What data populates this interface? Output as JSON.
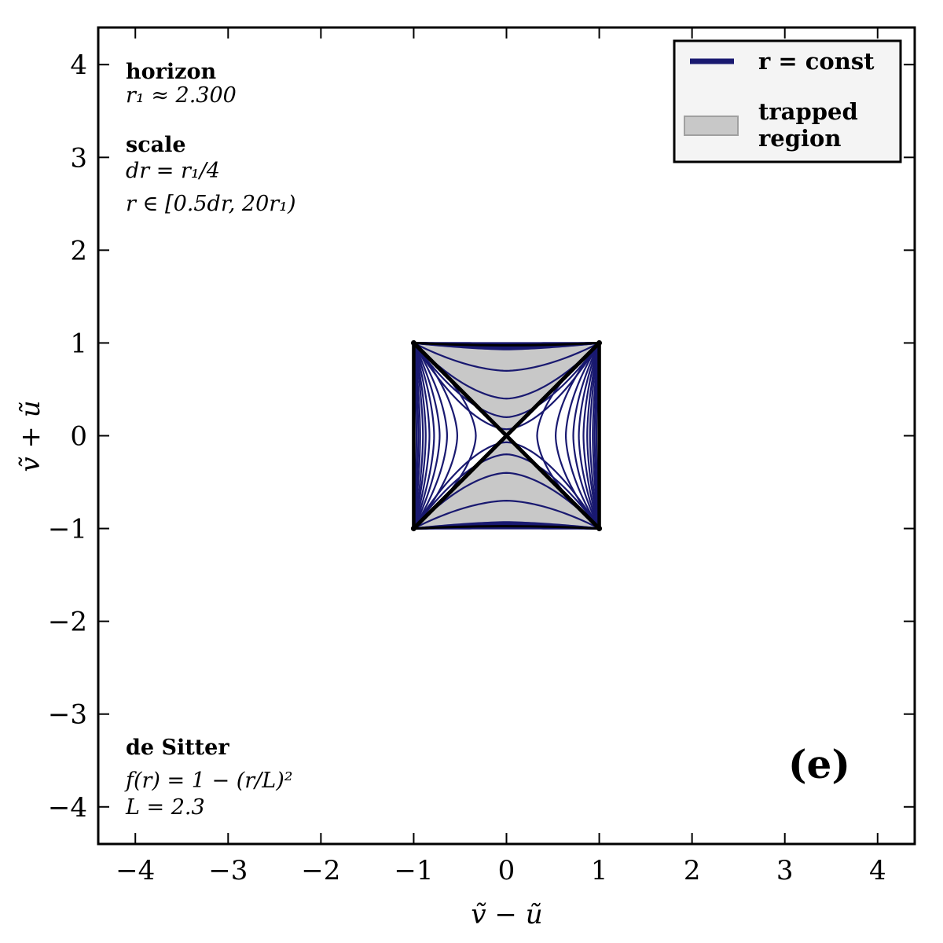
{
  "chart_data": {
    "type": "line",
    "title": "",
    "xlabel": "ṽ − ũ",
    "ylabel": "ṽ + ũ",
    "xlim": [
      -4.4,
      4.4
    ],
    "ylim": [
      -4.4,
      4.4
    ],
    "xticks": [
      -4,
      -3,
      -2,
      -1,
      0,
      1,
      2,
      3,
      4
    ],
    "yticks": [
      -4,
      -3,
      -2,
      -1,
      0,
      1,
      2,
      3,
      4
    ],
    "xtick_labels": [
      "−4",
      "−3",
      "−2",
      "−1",
      "0",
      "1",
      "2",
      "3",
      "4"
    ],
    "ytick_labels": [
      "−4",
      "−3",
      "−2",
      "−1",
      "0",
      "1",
      "2",
      "3",
      "4"
    ],
    "grid": false,
    "legend": {
      "placement": "top-right",
      "entries": [
        {
          "label": "r = const",
          "kind": "line",
          "color": "#191970"
        },
        {
          "label_line1": "trapped",
          "label_line2": "region",
          "kind": "patch",
          "color": "#c8c8c8"
        }
      ]
    },
    "annotations": {
      "horizon_title": "horizon",
      "horizon_value": "r₁ ≈ 2.300",
      "scale_title": "scale",
      "scale_dr": "dr = r₁/4",
      "scale_range": "r ∈ [0.5dr, 20r₁)",
      "model_title": "de Sitter",
      "model_f": "f(r) = 1 − (r/L)²",
      "model_L": "L = 2.3",
      "panel": "(e)"
    },
    "diamond_corners": [
      [
        -1,
        1
      ],
      [
        1,
        1
      ],
      [
        1,
        -1
      ],
      [
        -1,
        -1
      ]
    ],
    "trapped_regions": [
      [
        [
          -1,
          1
        ],
        [
          0,
          0
        ],
        [
          1,
          1
        ]
      ],
      [
        [
          -1,
          -1
        ],
        [
          0,
          0
        ],
        [
          1,
          -1
        ]
      ]
    ],
    "horizon_lines": [
      [
        [
          -1,
          -1
        ],
        [
          1,
          1
        ]
      ],
      [
        [
          -1,
          1
        ],
        [
          1,
          -1
        ]
      ]
    ],
    "r_const_curves": {
      "color": "#191970",
      "vertex_positions": [
        0.33,
        0.53,
        0.64,
        0.72,
        0.78,
        0.83,
        0.87,
        0.9,
        0.93,
        0.95,
        0.97
      ],
      "spacelike_vertices": [
        0.07,
        0.2,
        0.4,
        0.7
      ]
    },
    "colors": {
      "r_const": "#191970",
      "trapped": "#c8c8c8",
      "legend_bg": "#f4f4f4"
    }
  }
}
